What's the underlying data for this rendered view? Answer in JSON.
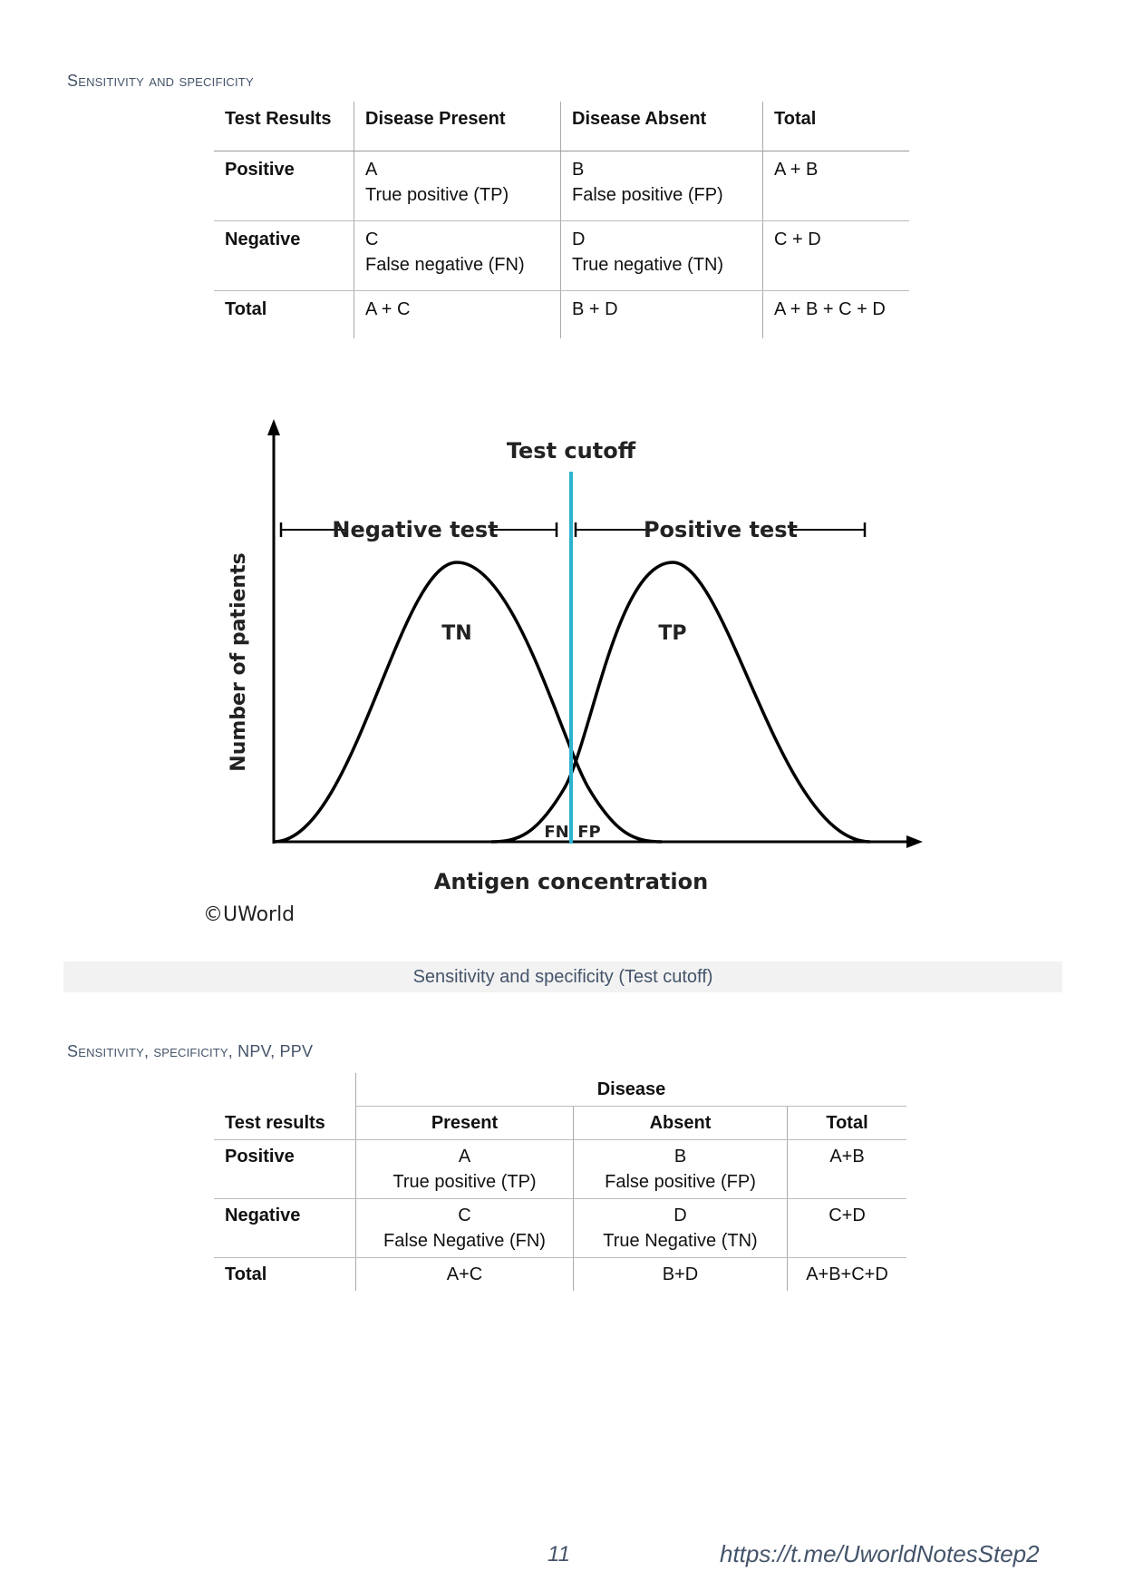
{
  "section1": {
    "heading": "Sensitivity and specificity",
    "table": {
      "headers": [
        "Test Results",
        "Disease Present",
        "Disease Absent",
        "Total"
      ],
      "rows": [
        {
          "label": "Positive",
          "present_letter": "A",
          "present_text": "True positive (TP)",
          "absent_letter": "B",
          "absent_text": "False positive (FP)",
          "total": "A + B"
        },
        {
          "label": "Negative",
          "present_letter": "C",
          "present_text": "False negative (FN)",
          "absent_letter": "D",
          "absent_text": "True negative (TN)",
          "total": "C + D"
        },
        {
          "label": "Total",
          "present_letter": "A + C",
          "present_text": "",
          "absent_letter": "B + D",
          "absent_text": "",
          "total": "A + B + C + D"
        }
      ]
    }
  },
  "figure": {
    "cutoff_label": "Test cutoff",
    "negative_label": "Negative test",
    "positive_label": "Positive test",
    "tn_label": "TN",
    "tp_label": "TP",
    "fn_label": "FN",
    "fp_label": "FP",
    "y_axis_label": "Number of patients",
    "x_axis_label": "Antigen concentration",
    "copyright": "©UWorld",
    "caption": "Sensitivity and specificity (Test cutoff)",
    "colors": {
      "cutoff_line": "#2bb3d0",
      "curves": "#000000"
    }
  },
  "section2": {
    "heading_small_caps": "Sensitivity, specificity,",
    "heading_rest": " NPV, PPV",
    "table": {
      "group_header": "Disease",
      "headers": [
        "Test results",
        "Present",
        "Absent",
        "Total"
      ],
      "rows": [
        {
          "label": "Positive",
          "present_letter": "A",
          "present_text": "True positive (TP)",
          "absent_letter": "B",
          "absent_text": "False positive (FP)",
          "total": "A+B"
        },
        {
          "label": "Negative",
          "present_letter": "C",
          "present_text": "False Negative (FN)",
          "absent_letter": "D",
          "absent_text": "True Negative (TN)",
          "total": "C+D"
        },
        {
          "label": "Total",
          "present_letter": "A+C",
          "present_text": "",
          "absent_letter": "B+D",
          "absent_text": "",
          "total": "A+B+C+D"
        }
      ]
    }
  },
  "footer": {
    "page_number": "11",
    "link": "https://t.me/UworldNotesStep2"
  }
}
